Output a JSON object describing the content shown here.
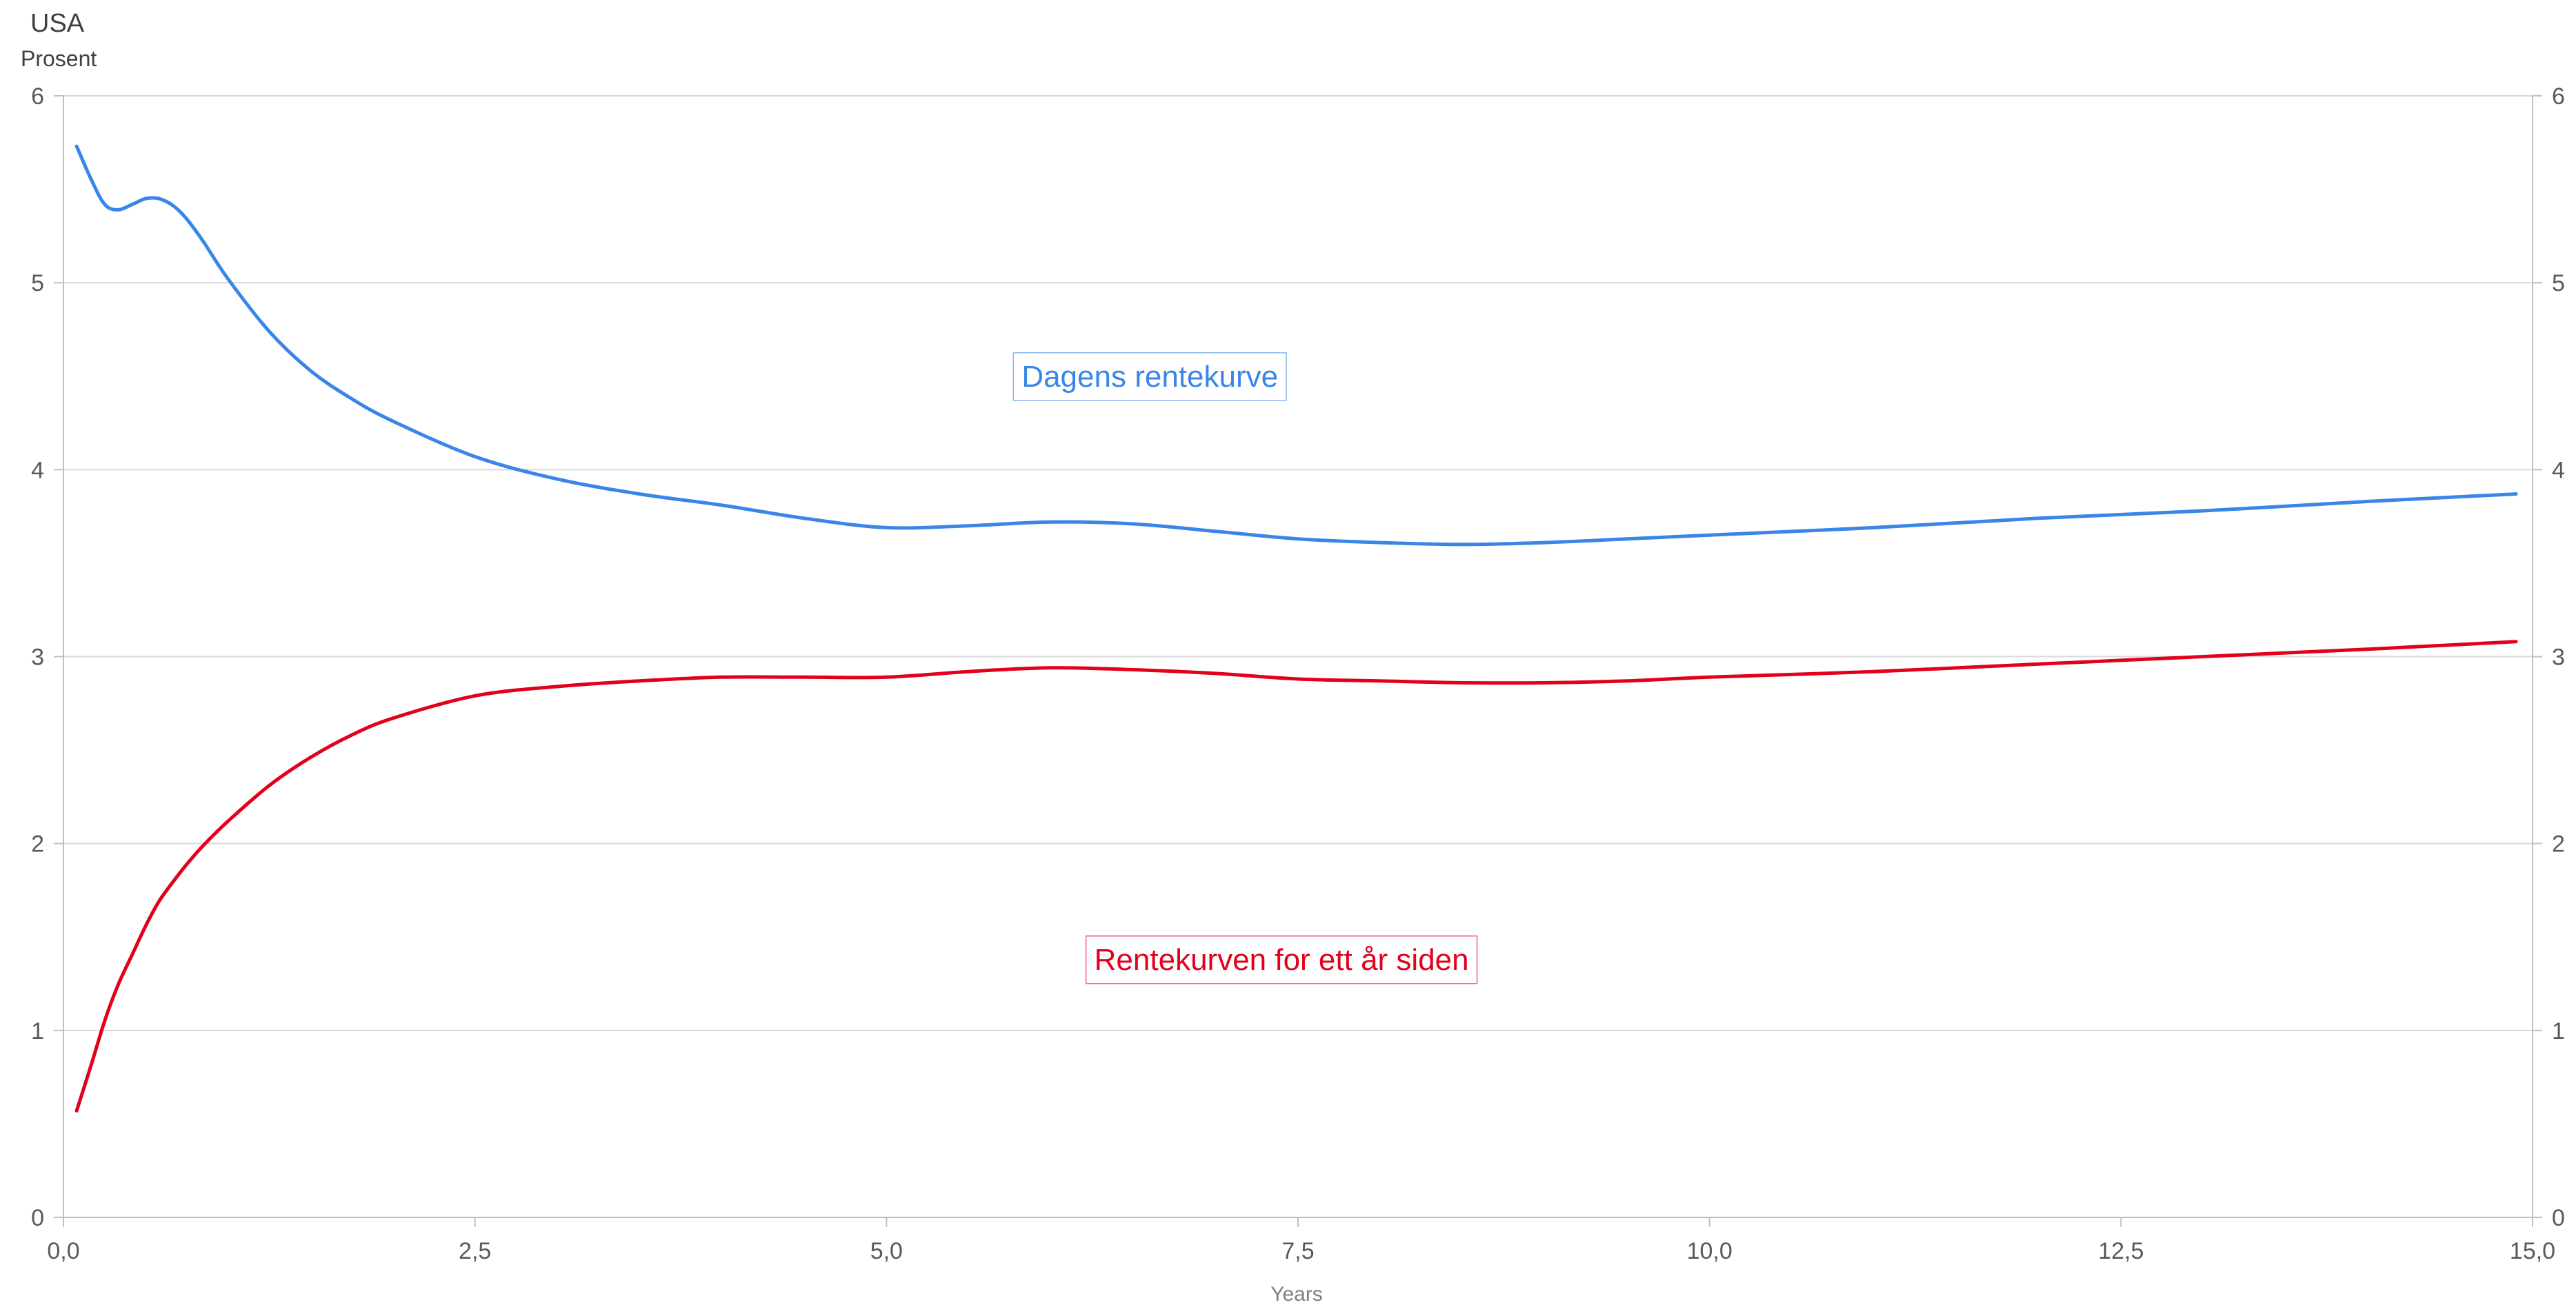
{
  "chart_data": {
    "type": "line",
    "title": "USA",
    "ylabel": "Prosent",
    "xlabel": "Years",
    "xlim": [
      0,
      15
    ],
    "ylim": [
      0,
      6
    ],
    "x_ticks": [
      "0,0",
      "2,5",
      "5,0",
      "7,5",
      "10,0",
      "12,5",
      "15,0"
    ],
    "y_ticks": [
      "0",
      "1",
      "2",
      "3",
      "4",
      "5",
      "6"
    ],
    "grid": true,
    "series": [
      {
        "name": "Dagens rentekurve",
        "color": "#3a86e8",
        "x": [
          0.08,
          0.17,
          0.25,
          0.33,
          0.42,
          0.5,
          0.58,
          0.67,
          0.75,
          0.85,
          1.0,
          1.25,
          1.5,
          1.75,
          2.0,
          2.5,
          3.0,
          3.5,
          4.0,
          4.5,
          5.0,
          5.5,
          6.0,
          6.5,
          7.0,
          7.5,
          8.0,
          8.5,
          9.0,
          9.5,
          10.0,
          11.0,
          12.0,
          13.0,
          14.0,
          14.9
        ],
        "y": [
          5.73,
          5.55,
          5.42,
          5.39,
          5.42,
          5.45,
          5.45,
          5.41,
          5.34,
          5.22,
          5.02,
          4.74,
          4.53,
          4.38,
          4.26,
          4.07,
          3.95,
          3.87,
          3.81,
          3.74,
          3.69,
          3.7,
          3.72,
          3.71,
          3.67,
          3.63,
          3.61,
          3.6,
          3.61,
          3.63,
          3.65,
          3.69,
          3.74,
          3.78,
          3.83,
          3.87
        ]
      },
      {
        "name": "Rentekurven for ett år siden",
        "color": "#e3001b",
        "x": [
          0.08,
          0.17,
          0.25,
          0.33,
          0.42,
          0.5,
          0.58,
          0.67,
          0.75,
          0.85,
          1.0,
          1.25,
          1.5,
          1.75,
          2.0,
          2.5,
          3.0,
          3.5,
          4.0,
          4.5,
          5.0,
          5.5,
          6.0,
          6.5,
          7.0,
          7.5,
          8.0,
          8.5,
          9.0,
          9.5,
          10.0,
          11.0,
          12.0,
          13.0,
          14.0,
          14.9
        ],
        "y": [
          0.57,
          0.82,
          1.05,
          1.24,
          1.41,
          1.56,
          1.69,
          1.8,
          1.89,
          1.99,
          2.12,
          2.31,
          2.46,
          2.58,
          2.67,
          2.79,
          2.84,
          2.87,
          2.89,
          2.89,
          2.89,
          2.92,
          2.94,
          2.93,
          2.91,
          2.88,
          2.87,
          2.86,
          2.86,
          2.87,
          2.89,
          2.92,
          2.96,
          3.0,
          3.04,
          3.08
        ]
      }
    ],
    "annotations": [
      {
        "text": "Dagens rentekurve",
        "color": "#3a86e8",
        "x": 6.6,
        "y": 4.5
      },
      {
        "text": "Rentekurven for ett år siden",
        "color": "#e3001b",
        "x": 7.4,
        "y": 1.38
      }
    ]
  }
}
